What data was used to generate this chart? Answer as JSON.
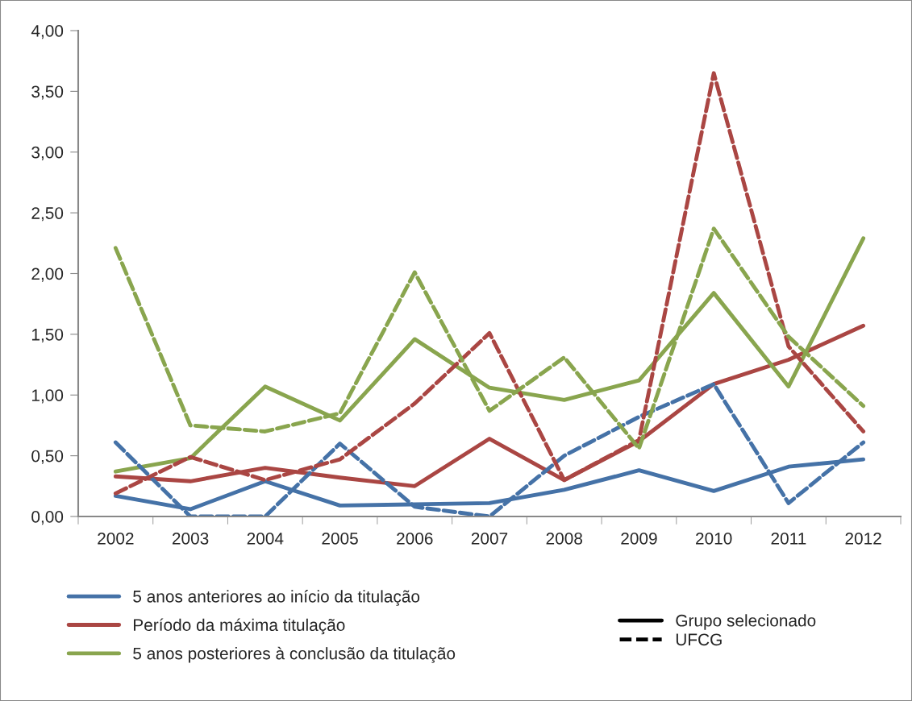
{
  "chart_data": {
    "type": "line",
    "categories": [
      "2002",
      "2003",
      "2004",
      "2005",
      "2006",
      "2007",
      "2008",
      "2009",
      "2010",
      "2011",
      "2012"
    ],
    "series": [
      {
        "name": "5 anos anteriores ao início da titulação",
        "color": "#4572a7",
        "line_style": "solid",
        "values": [
          0.17,
          0.06,
          0.29,
          0.09,
          0.1,
          0.11,
          0.22,
          0.38,
          0.21,
          0.41,
          0.47
        ]
      },
      {
        "name": "Período da máxima titulação",
        "color": "#aa4643",
        "line_style": "solid",
        "values": [
          0.33,
          0.29,
          0.4,
          0.32,
          0.25,
          0.64,
          0.3,
          0.62,
          1.09,
          1.29,
          1.57
        ]
      },
      {
        "name": "5 anos posteriores à conclusão da titulação",
        "color": "#89a54e",
        "line_style": "solid",
        "values": [
          0.37,
          0.48,
          1.07,
          0.79,
          1.46,
          1.06,
          0.96,
          1.12,
          1.84,
          1.07,
          2.29
        ]
      },
      {
        "color": "#4572a7",
        "line_style": "dashed",
        "values": [
          0.61,
          0.0,
          0.0,
          0.6,
          0.08,
          0.0,
          0.5,
          0.82,
          1.09,
          0.11,
          0.61
        ]
      },
      {
        "color": "#aa4643",
        "line_style": "dashed",
        "values": [
          0.19,
          0.49,
          0.3,
          0.47,
          0.93,
          1.51,
          0.3,
          0.63,
          3.65,
          1.4,
          0.7
        ]
      },
      {
        "color": "#89a54e",
        "line_style": "dashed",
        "values": [
          2.21,
          0.75,
          0.7,
          0.85,
          2.01,
          0.87,
          1.31,
          0.56,
          2.37,
          1.48,
          0.91
        ]
      }
    ],
    "annotations": [
      "Grupo selecionado",
      "UFCG"
    ],
    "ylim": [
      0,
      4
    ],
    "yticks": [
      {
        "value": 0,
        "label": "0,00"
      },
      {
        "value": 0.5,
        "label": "0,50"
      },
      {
        "value": 1,
        "label": "1,00"
      },
      {
        "value": 1.5,
        "label": "1,50"
      },
      {
        "value": 2,
        "label": "2,00"
      },
      {
        "value": 2.5,
        "label": "2,50"
      },
      {
        "value": 3,
        "label": "3,00"
      },
      {
        "value": 3.5,
        "label": "3,50"
      },
      {
        "value": 4,
        "label": "4,00"
      }
    ],
    "grid": false,
    "legend": "bottom",
    "marker": "none"
  }
}
